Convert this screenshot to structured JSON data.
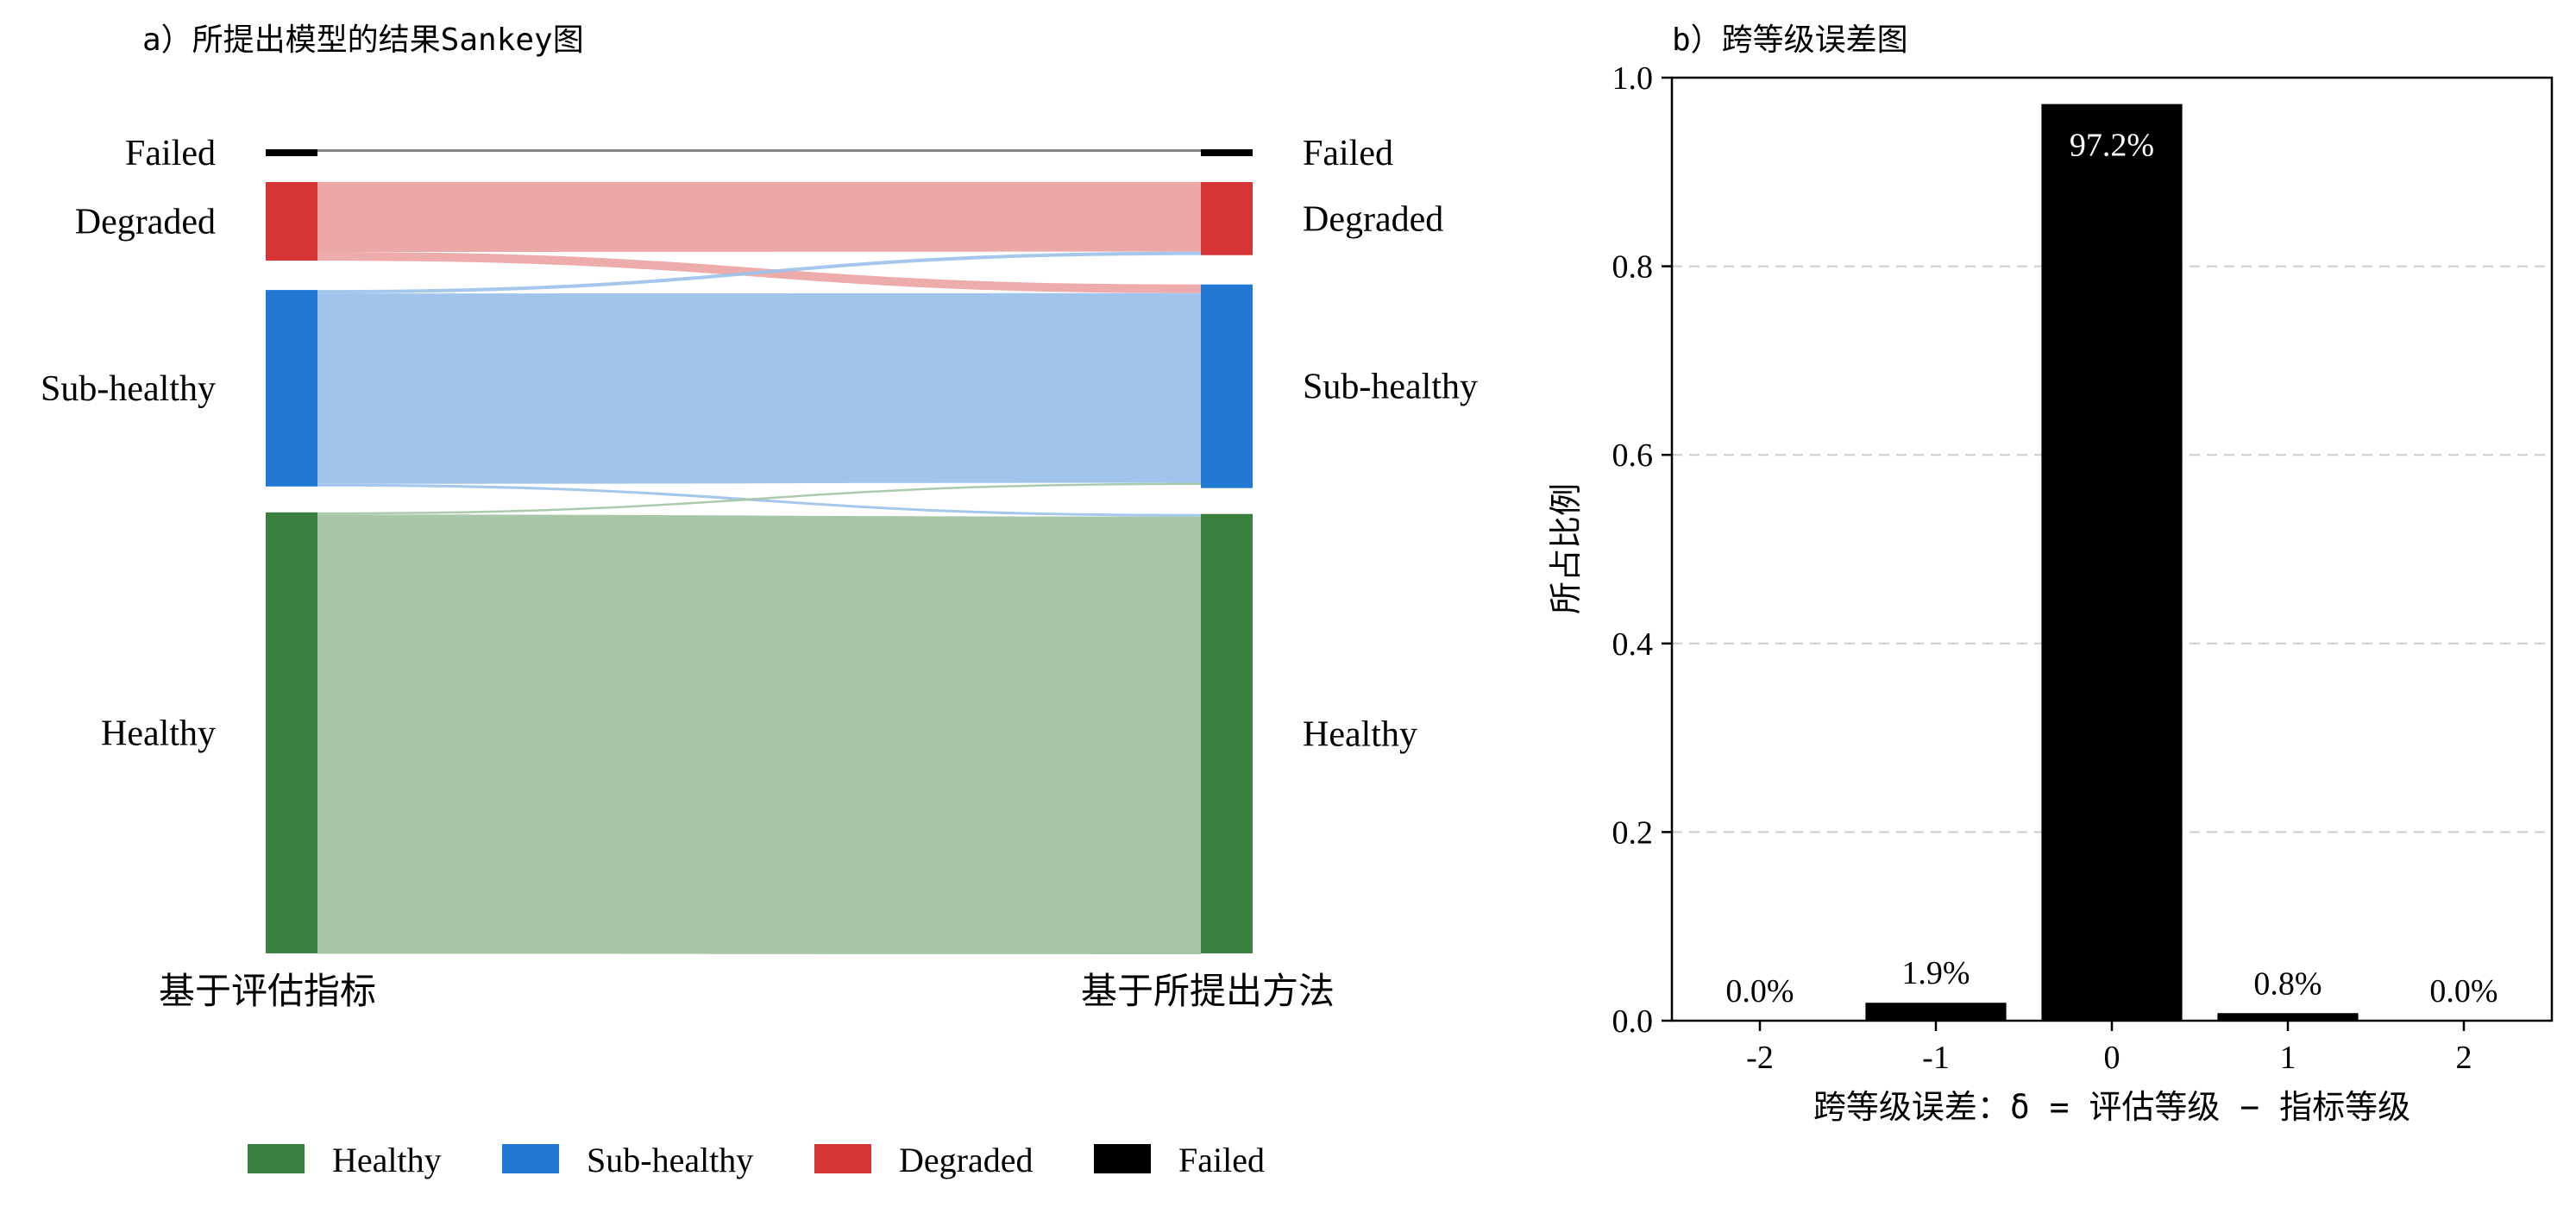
{
  "colors": {
    "healthy": "#3a7f3d",
    "sub_healthy": "#2279d4",
    "degraded": "#d73535",
    "failed": "#000000",
    "healthy_flow": "#a2c4a3",
    "sub_healthy_flow": "#9bc1ea",
    "degraded_flow": "#eba2a2",
    "failed_flow": "#7f7f7f",
    "bar": "#000000",
    "grid": "#cccccc"
  },
  "chart_data": [
    {
      "type": "sankey",
      "title": "a）所提出模型的结果Sankey图",
      "left_axis_label": "基于评估指标",
      "right_axis_label": "基于所提出方法",
      "nodes": [
        {
          "key": "failed",
          "label": "Failed",
          "left_value": 0.3,
          "right_value": 0.3
        },
        {
          "key": "degraded",
          "label": "Degraded",
          "left_value": 9.0,
          "right_value": 8.4
        },
        {
          "key": "sub_healthy",
          "label": "Sub-healthy",
          "left_value": 22.5,
          "right_value": 23.4
        },
        {
          "key": "healthy",
          "label": "Healthy",
          "left_value": 50.5,
          "right_value": 50.5
        }
      ],
      "flows": [
        {
          "from": "failed",
          "to": "failed",
          "value": 0.3
        },
        {
          "from": "degraded",
          "to": "degraded",
          "value": 8.0
        },
        {
          "from": "degraded",
          "to": "sub_healthy",
          "value": 1.0
        },
        {
          "from": "sub_healthy",
          "to": "degraded",
          "value": 0.4
        },
        {
          "from": "sub_healthy",
          "to": "sub_healthy",
          "value": 21.8
        },
        {
          "from": "sub_healthy",
          "to": "healthy",
          "value": 0.3
        },
        {
          "from": "healthy",
          "to": "sub_healthy",
          "value": 0.2
        },
        {
          "from": "healthy",
          "to": "healthy",
          "value": 50.3
        }
      ],
      "legend": {
        "position": "bottom",
        "entries": [
          {
            "key": "healthy",
            "label": "Healthy"
          },
          {
            "key": "sub_healthy",
            "label": "Sub-healthy"
          },
          {
            "key": "degraded",
            "label": "Degraded"
          },
          {
            "key": "failed",
            "label": "Failed"
          }
        ]
      }
    },
    {
      "type": "bar",
      "title": "b）跨等级误差图",
      "categories": [
        "-2",
        "-1",
        "0",
        "1",
        "2"
      ],
      "values": [
        0.0,
        0.019,
        0.972,
        0.008,
        0.0
      ],
      "data_labels": [
        "0.0%",
        "1.9%",
        "97.2%",
        "0.8%",
        "0.0%"
      ],
      "xlabel": "跨等级误差：δ = 评估等级 − 指标等级",
      "ylabel": "所占比例",
      "ylim": [
        0,
        1.0
      ],
      "yticks": [
        "0.0",
        "0.2",
        "0.4",
        "0.6",
        "0.8",
        "1.0"
      ],
      "ytick_values": [
        0.0,
        0.2,
        0.4,
        0.6,
        0.8,
        1.0
      ],
      "grid": "horizontal dashed"
    }
  ]
}
